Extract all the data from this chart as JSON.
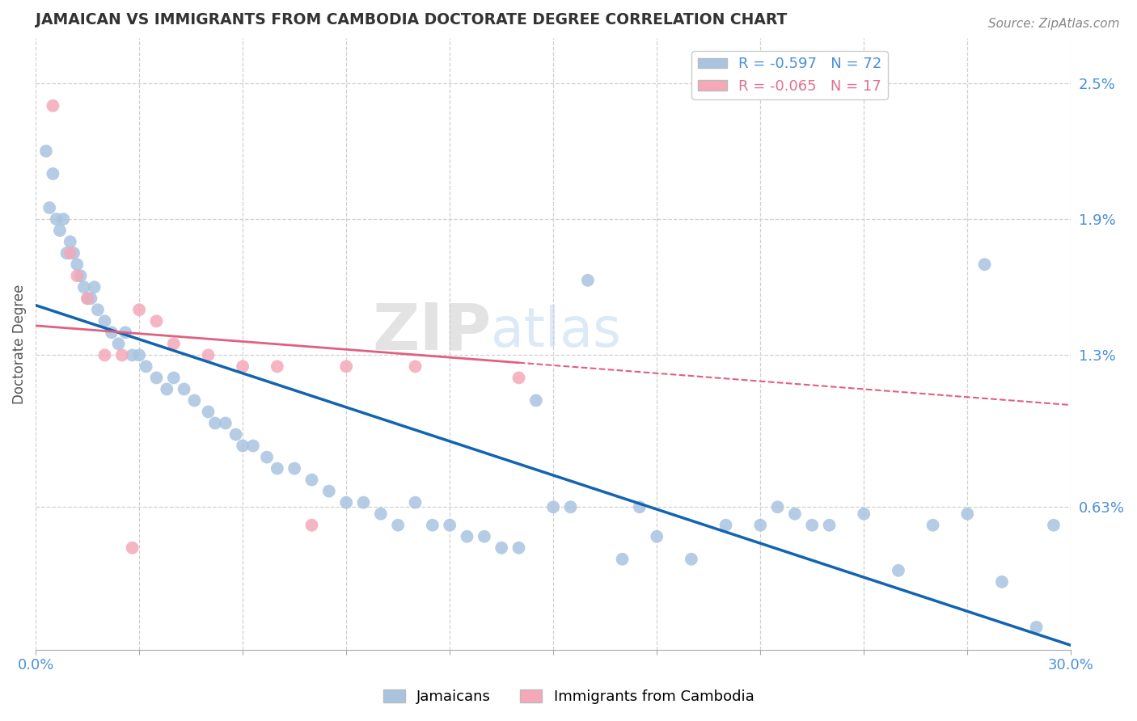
{
  "title": "JAMAICAN VS IMMIGRANTS FROM CAMBODIA DOCTORATE DEGREE CORRELATION CHART",
  "source": "Source: ZipAtlas.com",
  "ylabel": "Doctorate Degree",
  "right_yticks": [
    "2.5%",
    "1.9%",
    "1.3%",
    "0.63%"
  ],
  "right_ytick_vals": [
    2.5,
    1.9,
    1.3,
    0.63
  ],
  "legend_blue_r": "R = -0.597",
  "legend_blue_n": "N = 72",
  "legend_pink_r": "R = -0.065",
  "legend_pink_n": "N = 17",
  "xlim": [
    0.0,
    30.0
  ],
  "ylim": [
    0.0,
    2.7
  ],
  "blue_color": "#a8c4e0",
  "pink_color": "#f4a8b8",
  "line_blue": "#1264b0",
  "line_pink": "#e06080",
  "watermark_zip": "ZIP",
  "watermark_atlas": "atlas",
  "blue_scatter_x": [
    0.3,
    0.4,
    0.5,
    0.6,
    0.7,
    0.8,
    0.9,
    1.0,
    1.1,
    1.2,
    1.3,
    1.4,
    1.5,
    1.6,
    1.7,
    1.8,
    2.0,
    2.2,
    2.4,
    2.6,
    2.8,
    3.0,
    3.2,
    3.5,
    3.8,
    4.0,
    4.3,
    4.6,
    5.0,
    5.2,
    5.5,
    5.8,
    6.0,
    6.3,
    6.7,
    7.0,
    7.5,
    8.0,
    8.5,
    9.0,
    9.5,
    10.0,
    10.5,
    11.0,
    11.5,
    12.0,
    12.5,
    13.0,
    13.5,
    14.0,
    15.0,
    16.0,
    17.0,
    18.0,
    19.0,
    20.0,
    21.0,
    22.0,
    23.0,
    24.0,
    25.0,
    26.0,
    27.0,
    28.0,
    29.0,
    29.5,
    14.5,
    15.5,
    17.5,
    21.5,
    22.5,
    27.5
  ],
  "blue_scatter_y": [
    2.2,
    1.95,
    2.1,
    1.9,
    1.85,
    1.9,
    1.75,
    1.8,
    1.75,
    1.7,
    1.65,
    1.6,
    1.55,
    1.55,
    1.6,
    1.5,
    1.45,
    1.4,
    1.35,
    1.4,
    1.3,
    1.3,
    1.25,
    1.2,
    1.15,
    1.2,
    1.15,
    1.1,
    1.05,
    1.0,
    1.0,
    0.95,
    0.9,
    0.9,
    0.85,
    0.8,
    0.8,
    0.75,
    0.7,
    0.65,
    0.65,
    0.6,
    0.55,
    0.65,
    0.55,
    0.55,
    0.5,
    0.5,
    0.45,
    0.45,
    0.63,
    1.63,
    0.4,
    0.5,
    0.4,
    0.55,
    0.55,
    0.6,
    0.55,
    0.6,
    0.35,
    0.55,
    0.6,
    0.3,
    0.1,
    0.55,
    1.1,
    0.63,
    0.63,
    0.63,
    0.55,
    1.7
  ],
  "pink_scatter_x": [
    0.5,
    1.0,
    1.2,
    1.5,
    2.0,
    2.5,
    3.0,
    3.5,
    4.0,
    5.0,
    6.0,
    7.0,
    8.0,
    9.0,
    11.0,
    14.0,
    2.8
  ],
  "pink_scatter_y": [
    2.4,
    1.75,
    1.65,
    1.55,
    1.3,
    1.3,
    1.5,
    1.45,
    1.35,
    1.3,
    1.25,
    1.25,
    0.55,
    1.25,
    1.25,
    1.2,
    0.45
  ],
  "blue_line_x0": 0.0,
  "blue_line_y0": 1.52,
  "blue_line_x1": 30.0,
  "blue_line_y1": 0.02,
  "pink_line_x0": 0.0,
  "pink_line_y0": 1.43,
  "pink_line_x1": 30.0,
  "pink_line_y1": 1.08,
  "pink_solid_end": 14.0,
  "background_color": "#ffffff",
  "grid_color": "#d0d0d0"
}
